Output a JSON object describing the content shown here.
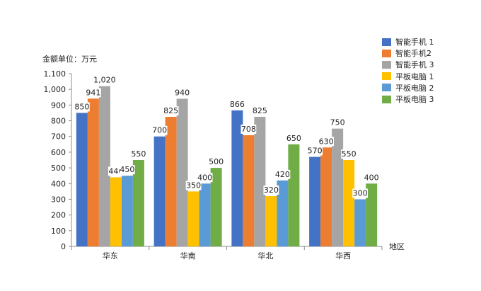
{
  "chart_data": {
    "type": "bar",
    "ylabel": "金额单位：万元",
    "xlabel": "地区",
    "ylim": [
      0,
      1100
    ],
    "yticks": [
      "0",
      "100",
      "200",
      "300",
      "400",
      "500",
      "600",
      "700",
      "800",
      "900",
      "1,000",
      "1,100"
    ],
    "categories": [
      "华东",
      "华南",
      "华北",
      "华西"
    ],
    "series": [
      {
        "name": "智能手机 1",
        "color": "#4472C4",
        "values": [
          850,
          700,
          866,
          570
        ],
        "labels": [
          "850",
          "700",
          "866",
          "570"
        ]
      },
      {
        "name": "智能手机2",
        "color": "#ED7D31",
        "values": [
          941,
          825,
          708,
          630
        ],
        "labels": [
          "941",
          "825",
          "708",
          "630"
        ]
      },
      {
        "name": "智能手机 3",
        "color": "#A5A5A5",
        "values": [
          1020,
          940,
          825,
          750
        ],
        "labels": [
          "1,020",
          "940",
          "825",
          "750"
        ]
      },
      {
        "name": "平板电脑 1",
        "color": "#FFC000",
        "values": [
          440,
          350,
          320,
          550
        ],
        "labels": [
          "440",
          "350",
          "320",
          "550"
        ]
      },
      {
        "name": "平板电脑 2",
        "color": "#5B9BD5",
        "values": [
          450,
          400,
          420,
          300
        ],
        "labels": [
          "450",
          "400",
          "420",
          "300"
        ]
      },
      {
        "name": "平板电脑 3",
        "color": "#70AD47",
        "values": [
          550,
          500,
          650,
          400
        ],
        "labels": [
          "550",
          "500",
          "650",
          "400"
        ]
      }
    ],
    "legend_position": "right",
    "grid": false
  }
}
